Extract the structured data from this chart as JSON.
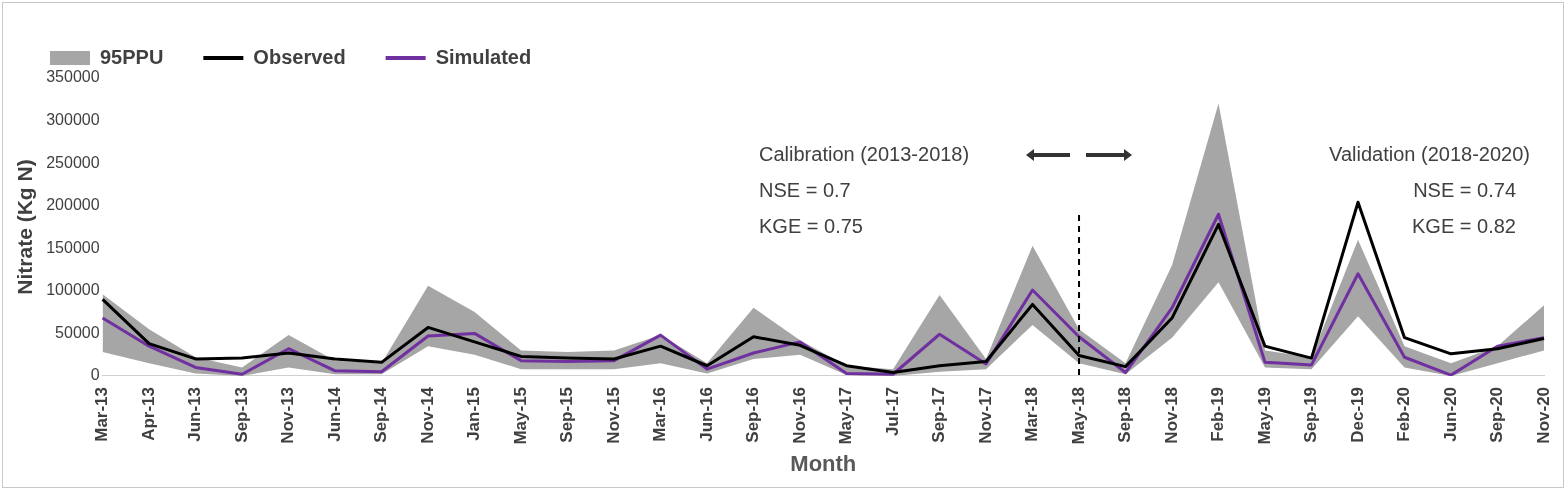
{
  "chart_data": {
    "type": "line",
    "xlabel": "Month",
    "ylabel": "Nitrate (Kg N)",
    "categories": [
      "Mar-13",
      "Apr-13",
      "Jun-13",
      "Sep-13",
      "Nov-13",
      "Jun-14",
      "Sep-14",
      "Nov-14",
      "Jan-15",
      "May-15",
      "Sep-15",
      "Nov-15",
      "Mar-16",
      "Jun-16",
      "Sep-16",
      "Nov-16",
      "May-17",
      "Jul-17",
      "Sep-17",
      "Nov-17",
      "Mar-18",
      "May-18",
      "Sep-18",
      "Nov-18",
      "Feb-19",
      "May-19",
      "Sep-19",
      "Dec-19",
      "Feb-20",
      "Jun-20",
      "Sep-20",
      "Nov-20"
    ],
    "series": [
      {
        "name": "95PPU",
        "type": "area",
        "color": "#a6a6a6",
        "values": [
          null,
          null,
          null,
          null,
          null,
          null,
          null,
          null,
          null,
          null,
          null,
          null,
          null,
          null,
          null,
          null,
          null,
          null,
          null,
          null,
          null,
          null,
          null,
          null,
          null,
          null,
          null,
          null,
          null,
          null,
          null,
          null
        ],
        "upper": [
          96000,
          55000,
          22000,
          10000,
          48000,
          18000,
          15000,
          106000,
          75000,
          30000,
          28000,
          30000,
          48000,
          15000,
          80000,
          42000,
          12000,
          8000,
          95000,
          20000,
          153000,
          55000,
          15000,
          130000,
          320000,
          30000,
          22000,
          160000,
          35000,
          15000,
          35000,
          83000
        ],
        "lower": [
          28000,
          15000,
          3000,
          0,
          10000,
          2000,
          2000,
          35000,
          25000,
          8000,
          8000,
          8000,
          15000,
          3000,
          20000,
          25000,
          1000,
          0,
          5000,
          8000,
          60000,
          15000,
          2000,
          45000,
          110000,
          10000,
          8000,
          70000,
          10000,
          0,
          15000,
          30000
        ]
      },
      {
        "name": "Observed",
        "type": "line",
        "color": "#000000",
        "values": [
          90000,
          38000,
          20000,
          21000,
          27000,
          20000,
          16000,
          57000,
          40000,
          23000,
          21000,
          20000,
          35000,
          12000,
          46000,
          36000,
          12000,
          4000,
          12000,
          17000,
          84000,
          24000,
          11000,
          68000,
          178000,
          35000,
          21000,
          204000,
          45000,
          26000,
          32000,
          44000
        ]
      },
      {
        "name": "Simulated",
        "type": "line",
        "color": "#7030a0",
        "values": [
          68000,
          35000,
          10000,
          2000,
          32000,
          6000,
          5000,
          47000,
          50000,
          18000,
          17000,
          18000,
          48000,
          8000,
          27000,
          40000,
          3000,
          2000,
          49000,
          14000,
          101000,
          46000,
          4000,
          80000,
          190000,
          16000,
          13000,
          120000,
          22000,
          1000,
          35000,
          45000
        ]
      }
    ],
    "ylim": [
      0,
      350000
    ],
    "yticks": [
      0,
      50000,
      100000,
      150000,
      200000,
      250000,
      300000,
      350000
    ],
    "grid": false,
    "legend": "top left",
    "marker": "none",
    "ref_lines": [
      {
        "axis": "x",
        "value": "May-18",
        "line_style": "dashed",
        "color": "#000000"
      }
    ],
    "annotations": [
      "Calibration (2013-2018)",
      "NSE = 0.7",
      "KGE = 0.75",
      "Validation (2018-2020)",
      "NSE = 0.74",
      "KGE = 0.82"
    ]
  }
}
